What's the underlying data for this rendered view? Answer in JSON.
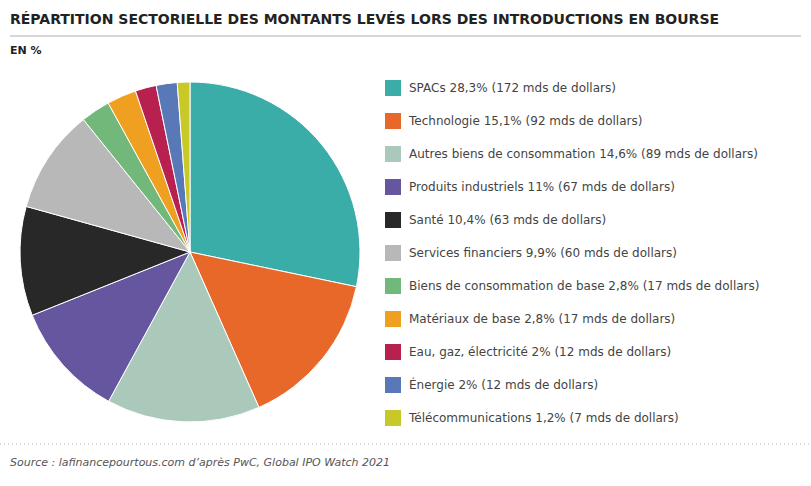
{
  "chart_data": {
    "type": "pie",
    "title": "RÉPARTITION SECTORIELLE DES MONTANTS LEVÉS LORS DES INTRODUCTIONS EN BOURSE",
    "subtitle": "EN %",
    "source": "Source : lafinancepourtous.com d’après PwC, Global IPO Watch 2021",
    "categories": [
      "SPACs 28,3% (172 mds de dollars)",
      "Technologie 15,1% (92 mds de dollars)",
      "Autres biens de consommation 14,6% (89 mds de dollars)",
      "Produits industriels 11% (67 mds de dollars)",
      "Santé 10,4% (63 mds de dollars)",
      "Services financiers 9,9% (60 mds de dollars)",
      "Biens de consommation de base 2,8% (17 mds de dollars)",
      "Matériaux de base 2,8% (17 mds de dollars)",
      "Eau, gaz, électricité 2% (12 mds de dollars)",
      "Énergie 2% (12 mds de dollars)",
      "Télécommunications 1,2% (7 mds de dollars)"
    ],
    "values": [
      28.3,
      15.1,
      14.6,
      11.0,
      10.4,
      9.9,
      2.8,
      2.8,
      2.0,
      2.0,
      1.2
    ],
    "colors": [
      "#3aada8",
      "#e8682a",
      "#aac9bb",
      "#6656a0",
      "#282828",
      "#b8b8b8",
      "#72b87a",
      "#f0a020",
      "#b82050",
      "#5878b8",
      "#c8c828"
    ],
    "legend": "right"
  }
}
